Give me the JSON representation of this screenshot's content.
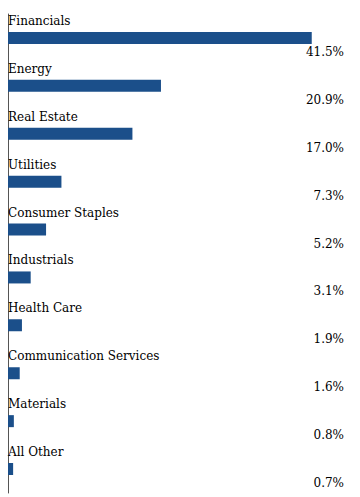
{
  "chart_data": {
    "type": "bar",
    "orientation": "horizontal",
    "categories": [
      "Financials",
      "Energy",
      "Real Estate",
      "Utilities",
      "Consumer Staples",
      "Industrials",
      "Health Care",
      "Communication Services",
      "Materials",
      "All Other"
    ],
    "values": [
      41.5,
      20.9,
      17.0,
      7.3,
      5.2,
      3.1,
      1.9,
      1.6,
      0.8,
      0.7
    ],
    "value_labels": [
      "41.5%",
      "20.9%",
      "17.0%",
      "7.3%",
      "5.2%",
      "3.1%",
      "1.9%",
      "1.6%",
      "0.8%",
      "0.7%"
    ],
    "data_labels": true,
    "color": "#1b4f8a",
    "xlim": [
      0,
      47
    ],
    "tick_labels": false,
    "grid": false
  }
}
